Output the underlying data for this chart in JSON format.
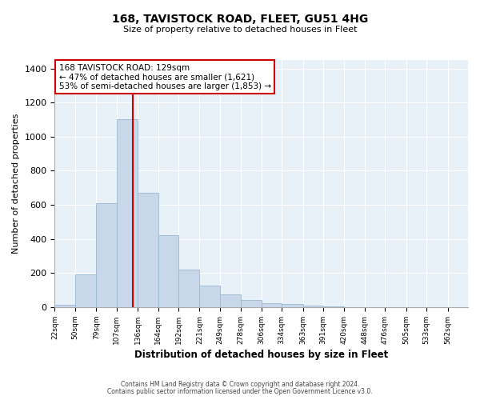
{
  "title": "168, TAVISTOCK ROAD, FLEET, GU51 4HG",
  "subtitle": "Size of property relative to detached houses in Fleet",
  "xlabel": "Distribution of detached houses by size in Fleet",
  "ylabel": "Number of detached properties",
  "bar_color": "#c8d8ea",
  "bar_edge_color": "#9ab8d0",
  "ax_bg_color": "#e8f0f8",
  "vline_x": 129,
  "vline_color": "#cc0000",
  "annotation_text": "168 TAVISTOCK ROAD: 129sqm\n← 47% of detached houses are smaller (1,621)\n53% of semi-detached houses are larger (1,853) →",
  "annotation_box_edge": "#cc0000",
  "bins": [
    22,
    50,
    79,
    107,
    136,
    164,
    192,
    221,
    249,
    278,
    306,
    334,
    363,
    391,
    420,
    448,
    476,
    505,
    533,
    562,
    590
  ],
  "counts": [
    15,
    190,
    610,
    1105,
    670,
    420,
    220,
    125,
    75,
    40,
    25,
    20,
    10,
    5,
    2,
    1,
    1,
    0,
    0,
    0
  ],
  "ylim": [
    0,
    1450
  ],
  "yticks": [
    0,
    200,
    400,
    600,
    800,
    1000,
    1200,
    1400
  ],
  "footer1": "Contains HM Land Registry data © Crown copyright and database right 2024.",
  "footer2": "Contains public sector information licensed under the Open Government Licence v3.0."
}
